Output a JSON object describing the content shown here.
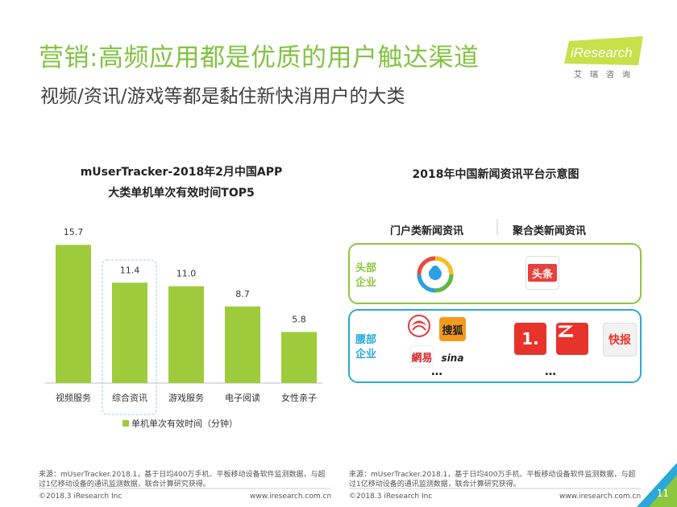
{
  "header": {
    "title": "营销:高频应用都是优质的用户触达渠道",
    "subtitle": "视频/资讯/游戏等都是黏住新快消用户的大类",
    "logo_text": "iResearch",
    "logo_cn": "艾瑞咨询"
  },
  "left_chart": {
    "title_line1": "mUserTracker-2018年2月中国APP",
    "title_line2": "大类单机单次有效时间TOP5",
    "legend_label": "单机单次有效时间（分钟）"
  },
  "chart_data": {
    "type": "bar",
    "categories": [
      "视频服务",
      "综合资讯",
      "游戏服务",
      "电子阅读",
      "女性亲子"
    ],
    "values": [
      15.7,
      11.4,
      11.0,
      8.7,
      5.8
    ],
    "value_labels": [
      "15.7",
      "11.4",
      "11.0",
      "8.7",
      "5.8"
    ],
    "highlighted_category": "综合资讯",
    "bar_color": "#9ecb3c",
    "ylim": [
      0,
      17
    ]
  },
  "right_diagram": {
    "title": "2018年中国新闻资讯平台示意图",
    "col_portal": "门户类新闻资讯",
    "col_aggregate": "聚合类新闻资讯",
    "row_top": {
      "line1": "头部",
      "line2": "企业",
      "color": "#8dc63f"
    },
    "row_waist": {
      "line1": "腰部",
      "line2": "企业",
      "color": "#2aa8d8"
    },
    "apps": {
      "toutiao": "头条",
      "sohu": "搜狐",
      "netease": "網易",
      "sina": "sina",
      "yidian": "1.",
      "kuaibao": "快报"
    },
    "ellipsis": "…"
  },
  "footer": {
    "left_source_1": "来源：mUserTracker.2018.1，基于日均400万手机、平板移动设备软件监测数据，与超",
    "left_source_2": "过1亿移动设备的通讯监测数据，联合计算研究获得。",
    "right_source_1": "来源：mUserTracker.2018.1，基于日均400万手机、平板移动设备软件监测数据，与超",
    "right_source_2": "过1亿移动设备的通讯监测数据，联合计算研究获得。",
    "copyright": "©2018.3 iResearch Inc",
    "url": "www.iresearch.com.cn",
    "page": "11"
  }
}
